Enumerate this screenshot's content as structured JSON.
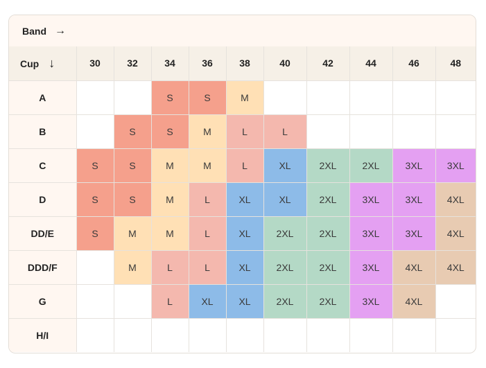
{
  "band_label": "Band",
  "band_arrow": "→",
  "cup_label": "Cup",
  "cup_arrow": "↓",
  "bands": [
    "30",
    "32",
    "34",
    "36",
    "38",
    "40",
    "42",
    "44",
    "46",
    "48"
  ],
  "rows": [
    {
      "cup": "A",
      "sizes": [
        "",
        "",
        "S",
        "S",
        "M",
        "",
        "",
        "",
        "",
        ""
      ]
    },
    {
      "cup": "B",
      "sizes": [
        "",
        "S",
        "S",
        "M",
        "L",
        "L",
        "",
        "",
        "",
        ""
      ]
    },
    {
      "cup": "C",
      "sizes": [
        "S",
        "S",
        "M",
        "M",
        "L",
        "XL",
        "2XL",
        "2XL",
        "3XL",
        "3XL"
      ]
    },
    {
      "cup": "D",
      "sizes": [
        "S",
        "S",
        "M",
        "L",
        "XL",
        "XL",
        "2XL",
        "3XL",
        "3XL",
        "4XL"
      ]
    },
    {
      "cup": "DD/E",
      "sizes": [
        "S",
        "M",
        "M",
        "L",
        "XL",
        "2XL",
        "2XL",
        "3XL",
        "3XL",
        "4XL"
      ]
    },
    {
      "cup": "DDD/F",
      "sizes": [
        "",
        "M",
        "L",
        "L",
        "XL",
        "2XL",
        "2XL",
        "3XL",
        "4XL",
        "4XL"
      ]
    },
    {
      "cup": "G",
      "sizes": [
        "",
        "",
        "L",
        "XL",
        "XL",
        "2XL",
        "2XL",
        "3XL",
        "4XL",
        ""
      ]
    },
    {
      "cup": "H/I",
      "sizes": [
        "",
        "",
        "",
        "",
        "",
        "",
        "",
        "",
        "",
        ""
      ]
    }
  ],
  "size_colors": {
    "S": "#f5a08c",
    "M": "#ffe0b5",
    "L": "#f4b8ae",
    "XL": "#8dbbe8",
    "2XL": "#b4d9c6",
    "3XL": "#e4a0f2",
    "4XL": "#e8cbb2"
  }
}
